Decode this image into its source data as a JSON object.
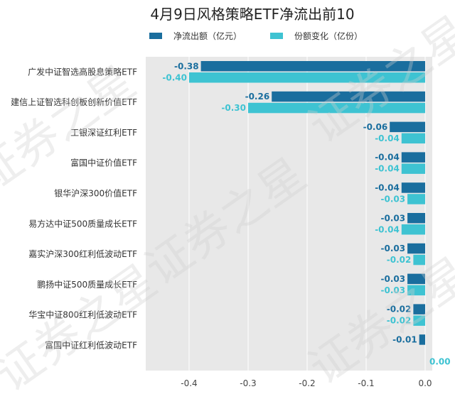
{
  "chart_data": {
    "type": "bar",
    "orientation": "horizontal",
    "title": "4月9日风格策略ETF净流出前10",
    "categories": [
      "广发中证智选高股息策略ETF",
      "建信上证智选科创板创新价值ETF",
      "工银深证红利ETF",
      "富国中证价值ETF",
      "银华沪深300价值ETF",
      "易方达中证500质量成长ETF",
      "嘉实沪深300红利低波动ETF",
      "鹏扬中证500质量成长ETF",
      "华宝中证800红利低波动ETF",
      "富国中证红利低波动ETF"
    ],
    "series": [
      {
        "name": "净流出额（亿元）",
        "color": "#1a6e9e",
        "values": [
          -0.38,
          -0.26,
          -0.06,
          -0.04,
          -0.04,
          -0.03,
          -0.03,
          -0.03,
          -0.02,
          -0.01
        ],
        "labels": [
          "-0.38",
          "-0.26",
          "-0.06",
          "-0.04",
          "-0.04",
          "-0.03",
          "-0.03",
          "-0.03",
          "-0.02",
          "-0.01"
        ]
      },
      {
        "name": "份额变化（亿份）",
        "color": "#3ec3d2",
        "values": [
          -0.4,
          -0.3,
          -0.04,
          -0.04,
          -0.03,
          -0.04,
          -0.02,
          -0.03,
          -0.02,
          0.0
        ],
        "labels": [
          "-0.40",
          "-0.30",
          "-0.04",
          "-0.04",
          "-0.03",
          "-0.04",
          "-0.02",
          "-0.03",
          "-0.02",
          "0.00"
        ]
      }
    ],
    "xlim": [
      -0.47,
      0.0
    ],
    "xticks": [
      -0.4,
      -0.3,
      -0.2,
      -0.1,
      0.0
    ],
    "xtick_labels": [
      "-0.4",
      "-0.3",
      "-0.2",
      "-0.1",
      "0.0"
    ],
    "legend_position": "top",
    "grid": true,
    "plot_background": "#e8e8e8",
    "watermark": "证券之星"
  }
}
